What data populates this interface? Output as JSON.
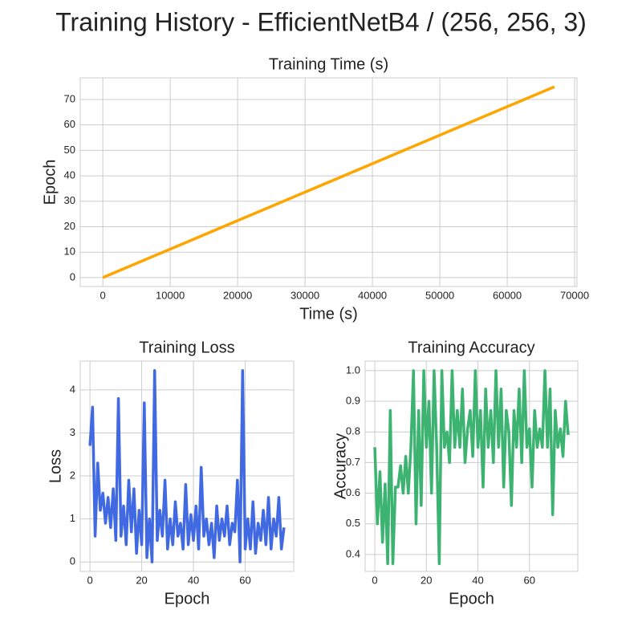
{
  "title": "Training History - EfficientNetB4 / (256, 256, 3)",
  "chart_data": [
    {
      "type": "line",
      "title": "Training Time (s)",
      "xlabel": "Time (s)",
      "ylabel": "Epoch",
      "x": [
        0,
        13400,
        26800,
        40200,
        53600,
        67000
      ],
      "y": [
        0,
        15,
        30,
        45,
        60,
        75
      ],
      "color": "#ffa500",
      "xlim": [
        -3350,
        70350
      ],
      "ylim": [
        -3.5,
        78.5
      ],
      "xticks": [
        0,
        10000,
        20000,
        30000,
        40000,
        50000,
        60000,
        70000
      ],
      "yticks": [
        0,
        10,
        20,
        30,
        40,
        50,
        60,
        70
      ],
      "grid": true
    },
    {
      "type": "line",
      "title": "Training Loss",
      "xlabel": "Epoch",
      "ylabel": "Loss",
      "x": [
        0,
        1,
        2,
        3,
        4,
        5,
        6,
        7,
        8,
        9,
        10,
        11,
        12,
        13,
        14,
        15,
        16,
        17,
        18,
        19,
        20,
        21,
        22,
        23,
        24,
        25,
        26,
        27,
        28,
        29,
        30,
        31,
        32,
        33,
        34,
        35,
        36,
        37,
        38,
        39,
        40,
        41,
        42,
        43,
        44,
        45,
        46,
        47,
        48,
        49,
        50,
        51,
        52,
        53,
        54,
        55,
        56,
        57,
        58,
        59,
        60,
        61,
        62,
        63,
        64,
        65,
        66,
        67,
        68,
        69,
        70,
        71,
        72,
        73,
        74,
        75
      ],
      "y": [
        2.7,
        3.6,
        0.6,
        2.3,
        1.2,
        1.6,
        0.9,
        1.5,
        0.8,
        1.7,
        0.5,
        3.8,
        0.6,
        1.3,
        0.4,
        1.9,
        0.7,
        1.7,
        0.2,
        1.2,
        0.4,
        3.7,
        0.1,
        1.0,
        0.0,
        4.45,
        0.5,
        1.2,
        0.6,
        1.9,
        0.3,
        1.0,
        0.4,
        1.4,
        0.6,
        0.9,
        0.3,
        1.8,
        0.4,
        1.1,
        0.5,
        1.3,
        0.3,
        2.2,
        0.6,
        1.0,
        0.4,
        0.9,
        0.1,
        1.3,
        0.5,
        1.0,
        0.6,
        1.3,
        0.4,
        0.9,
        0.7,
        1.9,
        0.0,
        4.45,
        0.3,
        1.0,
        0.3,
        1.4,
        0.2,
        0.9,
        0.5,
        1.2,
        0.4,
        1.5,
        0.3,
        1.0,
        0.6,
        1.5,
        0.3,
        0.8
      ],
      "color": "#4169e1",
      "xlim": [
        -3.75,
        78.75
      ],
      "ylim": [
        -0.22,
        4.67
      ],
      "xticks": [
        0,
        20,
        40,
        60
      ],
      "yticks": [
        0,
        1,
        2,
        3,
        4
      ],
      "grid": true
    },
    {
      "type": "line",
      "title": "Training Accuracy",
      "xlabel": "Epoch",
      "ylabel": "Accuracy",
      "x": [
        0,
        1,
        2,
        3,
        4,
        5,
        6,
        7,
        8,
        9,
        10,
        11,
        12,
        13,
        14,
        15,
        16,
        17,
        18,
        19,
        20,
        21,
        22,
        23,
        24,
        25,
        26,
        27,
        28,
        29,
        30,
        31,
        32,
        33,
        34,
        35,
        36,
        37,
        38,
        39,
        40,
        41,
        42,
        43,
        44,
        45,
        46,
        47,
        48,
        49,
        50,
        51,
        52,
        53,
        54,
        55,
        56,
        57,
        58,
        59,
        60,
        61,
        62,
        63,
        64,
        65,
        66,
        67,
        68,
        69,
        70,
        71,
        72,
        73,
        74,
        75
      ],
      "y": [
        0.75,
        0.5,
        0.67,
        0.44,
        0.63,
        0.37,
        0.87,
        0.37,
        0.62,
        0.62,
        0.69,
        0.6,
        0.72,
        0.6,
        0.75,
        1.0,
        0.5,
        0.87,
        0.56,
        1.0,
        0.75,
        0.9,
        0.6,
        1.0,
        0.75,
        0.37,
        1.0,
        0.75,
        0.8,
        0.7,
        1.0,
        0.75,
        0.87,
        0.75,
        0.94,
        0.7,
        0.81,
        0.87,
        0.72,
        1.0,
        0.75,
        0.87,
        0.62,
        0.94,
        0.75,
        0.87,
        0.7,
        1.0,
        0.75,
        0.94,
        0.62,
        0.87,
        0.8,
        0.56,
        0.87,
        0.75,
        0.94,
        0.7,
        1.0,
        0.75,
        0.81,
        0.62,
        0.87,
        0.75,
        0.81,
        0.75,
        1.0,
        0.75,
        0.94,
        0.53,
        0.87,
        0.75,
        0.81,
        0.72,
        0.9,
        0.79
      ],
      "color": "#3cb371",
      "xlim": [
        -3.75,
        78.75
      ],
      "ylim": [
        0.345,
        1.031
      ],
      "xticks": [
        0,
        20,
        40,
        60
      ],
      "yticks": [
        0.4,
        0.5,
        0.6,
        0.7,
        0.8,
        0.9,
        {
          "value": 1,
          "label": "1.0"
        }
      ],
      "grid": true
    }
  ]
}
